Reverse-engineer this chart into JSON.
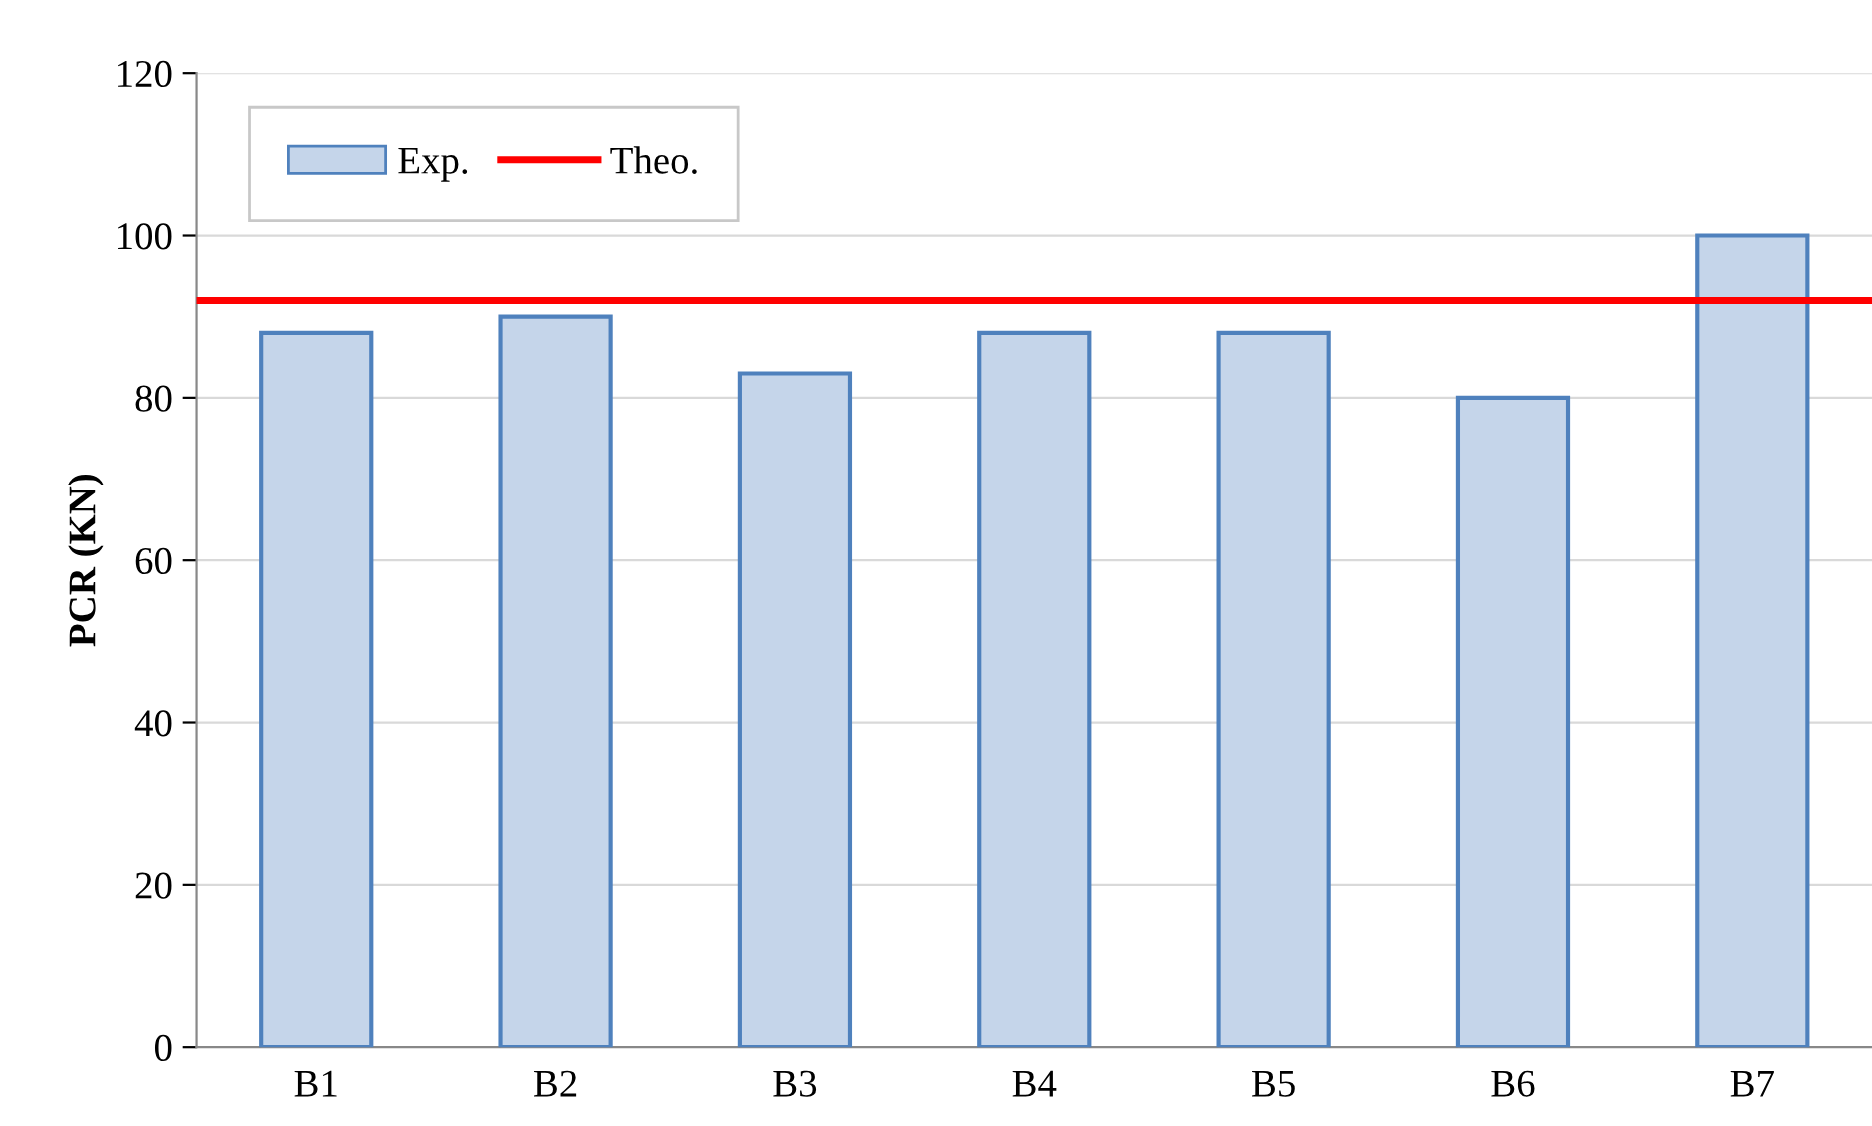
{
  "chart_data": {
    "type": "bar",
    "ylabel": "PCR (KN)",
    "categories": [
      "B1",
      "B2",
      "B3",
      "B4",
      "B5",
      "B6",
      "B7"
    ],
    "series": [
      {
        "name": "Exp.",
        "color": "#c5d5ea",
        "values": [
          88,
          90,
          83,
          88,
          88,
          80,
          100
        ]
      }
    ],
    "ref_lines": [
      {
        "axis": "y",
        "value": 92,
        "label": "Theo.",
        "color": "#ff0000",
        "line_style": "solid"
      }
    ],
    "ylim": [
      0,
      120
    ],
    "yticks": [
      0,
      20,
      40,
      60,
      80,
      100,
      120
    ],
    "grid": "y",
    "legend": "top left"
  }
}
